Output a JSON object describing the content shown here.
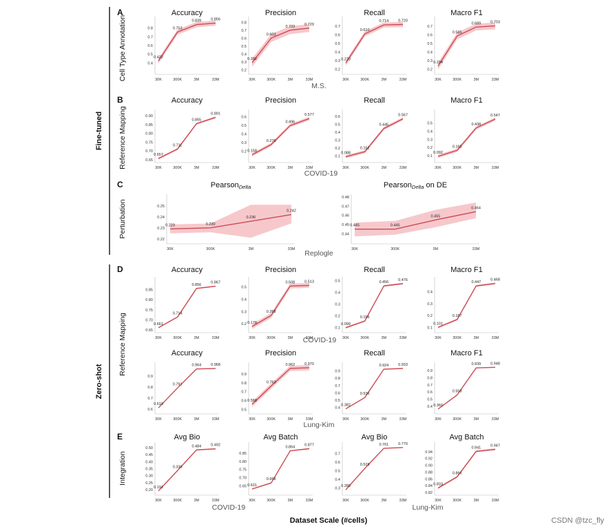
{
  "figure": {
    "x_title": "Dataset Scale (#cells)",
    "watermark": "CSDN @tzc_fly",
    "group_labels": [
      "Fine-tuned",
      "Zero-shot"
    ]
  },
  "colors": {
    "line": "#cc4a52",
    "band": "#ef9aa2",
    "axis": "#bbbbbb"
  },
  "panel_letters": [
    "A",
    "B",
    "C",
    "D",
    "E"
  ],
  "row_labels": [
    "Cell Type Annotation",
    "Reference Mapping",
    "Perturbation",
    "Reference Mapping",
    "Integration"
  ],
  "dataset_labels": [
    "M.S.",
    "COVID-19",
    "Replogle",
    "COVID-19",
    "Lung-Kim",
    "COVID-19",
    "Lung-Kim"
  ],
  "chart_data": [
    {
      "type": "line",
      "title": "Accuracy",
      "categories": [
        "30K",
        "300K",
        "3M",
        "33M"
      ],
      "values": [
        0.422,
        0.753,
        0.839,
        0.856
      ],
      "band": 0.03,
      "ylim": [
        0.3,
        0.9
      ],
      "yticks": [
        "0.4",
        "0.5",
        "0.6",
        "0.7",
        "0.8"
      ],
      "data_labels": [
        "0.422",
        "0.753",
        "0.839",
        "0.856"
      ]
    },
    {
      "type": "line",
      "title": "Precision",
      "categories": [
        "30K",
        "300K",
        "3M",
        "33M"
      ],
      "values": [
        0.292,
        0.603,
        0.703,
        0.729
      ],
      "band": 0.05,
      "ylim": [
        0.18,
        0.84
      ],
      "yticks": [
        "0.2",
        "0.3",
        "0.4",
        "0.5",
        "0.6",
        "0.7",
        "0.8"
      ],
      "data_labels": [
        "0.292",
        "0.603",
        "0.703",
        "0.729"
      ]
    },
    {
      "type": "line",
      "title": "Recall",
      "categories": [
        "30K",
        "300K",
        "3M",
        "33M"
      ],
      "values": [
        0.27,
        0.61,
        0.714,
        0.72
      ],
      "band": 0.03,
      "ylim": [
        0.17,
        0.78
      ],
      "yticks": [
        "0.2",
        "0.3",
        "0.4",
        "0.5",
        "0.6",
        "0.7"
      ],
      "data_labels": [
        "0.270",
        "0.610",
        "0.714",
        "0.720"
      ]
    },
    {
      "type": "line",
      "title": "Macro F1",
      "categories": [
        "30K",
        "300K",
        "3M",
        "33M"
      ],
      "values": [
        0.234,
        0.585,
        0.689,
        0.703
      ],
      "band": 0.04,
      "ylim": [
        0.17,
        0.78
      ],
      "yticks": [
        "0.2",
        "0.3",
        "0.4",
        "0.5",
        "0.6",
        "0.7"
      ],
      "data_labels": [
        "0.234",
        "0.585",
        "0.689",
        "0.703"
      ]
    },
    {
      "type": "line",
      "title": "Accuracy",
      "categories": [
        "30K",
        "300K",
        "3M",
        "33M"
      ],
      "values": [
        0.657,
        0.711,
        0.855,
        0.891
      ],
      "band": 0.006,
      "ylim": [
        0.65,
        0.92
      ],
      "yticks": [
        "0.65",
        "0.70",
        "0.75",
        "0.80",
        "0.85",
        "0.90"
      ],
      "data_labels": [
        "0.657",
        "0.711",
        "0.855",
        "0.891"
      ]
    },
    {
      "type": "line",
      "title": "Precision",
      "categories": [
        "30K",
        "300K",
        "3M",
        "33M"
      ],
      "values": [
        0.158,
        0.276,
        0.496,
        0.577
      ],
      "band": 0.02,
      "ylim": [
        0.1,
        0.65
      ],
      "yticks": [
        "0.2",
        "0.3",
        "0.4",
        "0.5",
        "0.6"
      ],
      "data_labels": [
        "0.158",
        "0.276",
        "0.496",
        "0.577"
      ]
    },
    {
      "type": "line",
      "title": "Recall",
      "categories": [
        "30K",
        "300K",
        "3M",
        "33M"
      ],
      "values": [
        0.088,
        0.152,
        0.445,
        0.567
      ],
      "band": 0.02,
      "ylim": [
        0.05,
        0.65
      ],
      "yticks": [
        "0.1",
        "0.2",
        "0.3",
        "0.4",
        "0.5",
        "0.6"
      ],
      "data_labels": [
        "0.088",
        "0.152",
        "0.445",
        "0.567"
      ]
    },
    {
      "type": "line",
      "title": "Macro F1",
      "categories": [
        "30K",
        "300K",
        "3M",
        "33M"
      ],
      "values": [
        0.092,
        0.165,
        0.438,
        0.547
      ],
      "band": 0.02,
      "ylim": [
        0.05,
        0.63
      ],
      "yticks": [
        "0.1",
        "0.2",
        "0.3",
        "0.4",
        "0.5"
      ],
      "data_labels": [
        "0.092",
        "0.165",
        "0.438",
        "0.547"
      ]
    },
    {
      "type": "line",
      "title": "Pearson",
      "title_sub": "Delta",
      "title_suffix": "",
      "categories": [
        "30K",
        "300K",
        "3M",
        "33M"
      ],
      "values": [
        0.229,
        0.23,
        0.236,
        0.242
      ],
      "band_lo": [
        0.225,
        0.226,
        0.221,
        0.234
      ],
      "band_hi": [
        0.233,
        0.234,
        0.251,
        0.251
      ],
      "ylim": [
        0.218,
        0.258
      ],
      "yticks": [
        "0.22",
        "0.23",
        "0.24",
        "0.25"
      ],
      "data_labels": [
        "0.229",
        "0.230",
        "0.236",
        "0.242"
      ]
    },
    {
      "type": "line",
      "title": "Pearson",
      "title_sub": "Delta",
      "title_suffix": " on DE",
      "categories": [
        "30K",
        "300K",
        "3M",
        "33M"
      ],
      "values": [
        0.445,
        0.445,
        0.455,
        0.464
      ],
      "band_lo": [
        0.437,
        0.439,
        0.447,
        0.457
      ],
      "band_hi": [
        0.452,
        0.454,
        0.466,
        0.474
      ],
      "ylim": [
        0.432,
        0.48
      ],
      "yticks": [
        "0.44",
        "0.45",
        "0.46",
        "0.47",
        "0.48"
      ],
      "data_labels": [
        "0.445",
        "0.445",
        "0.455",
        "0.464"
      ]
    },
    {
      "type": "line",
      "title": "Accuracy",
      "categories": [
        "30K",
        "300K",
        "3M",
        "33M"
      ],
      "values": [
        0.661,
        0.714,
        0.856,
        0.867
      ],
      "band": 0.003,
      "ylim": [
        0.65,
        0.9
      ],
      "yticks": [
        "0.65",
        "0.70",
        "0.75",
        "0.80",
        "0.85"
      ],
      "data_labels": [
        "0.661",
        "0.714",
        "0.856",
        "0.867"
      ]
    },
    {
      "type": "line",
      "title": "Precision",
      "categories": [
        "30K",
        "300K",
        "3M",
        "33M"
      ],
      "values": [
        0.178,
        0.268,
        0.508,
        0.513
      ],
      "band": 0.02,
      "ylim": [
        0.15,
        0.56
      ],
      "yticks": [
        "0.2",
        "0.3",
        "0.4",
        "0.5"
      ],
      "data_labels": [
        "0.178",
        "0.268",
        "0.508",
        "0.513"
      ]
    },
    {
      "type": "line",
      "title": "Recall",
      "categories": [
        "30K",
        "300K",
        "3M",
        "33M"
      ],
      "values": [
        0.099,
        0.156,
        0.456,
        0.476
      ],
      "band": 0.008,
      "ylim": [
        0.08,
        0.51
      ],
      "yticks": [
        "0.1",
        "0.2",
        "0.3",
        "0.4",
        "0.5"
      ],
      "data_labels": [
        "0.099",
        "0.156",
        "0.456",
        "0.476"
      ]
    },
    {
      "type": "line",
      "title": "Macro F1",
      "categories": [
        "30K",
        "300K",
        "3M",
        "33M"
      ],
      "values": [
        0.101,
        0.167,
        0.447,
        0.468
      ],
      "band": 0.008,
      "ylim": [
        0.08,
        0.5
      ],
      "yticks": [
        "0.1",
        "0.2",
        "0.3",
        "0.4"
      ],
      "data_labels": [
        "0.101",
        "0.167",
        "0.447",
        "0.468"
      ]
    },
    {
      "type": "line",
      "title": "Accuracy",
      "categories": [
        "30K",
        "300K",
        "3M",
        "33M"
      ],
      "values": [
        0.61,
        0.791,
        0.964,
        0.968
      ],
      "band": 0.004,
      "ylim": [
        0.58,
        1.0
      ],
      "yticks": [
        "0.6",
        "0.7",
        "0.8",
        "0.9"
      ],
      "data_labels": [
        "0.610",
        "0.791",
        "0.964",
        "0.968"
      ]
    },
    {
      "type": "line",
      "title": "Precision",
      "categories": [
        "30K",
        "300K",
        "3M",
        "33M"
      ],
      "values": [
        0.558,
        0.763,
        0.962,
        0.97
      ],
      "band": 0.03,
      "ylim": [
        0.48,
        1.0
      ],
      "yticks": [
        "0.5",
        "0.6",
        "0.7",
        "0.8",
        "0.9"
      ],
      "data_labels": [
        "0.558",
        "0.763",
        "0.962",
        "0.970"
      ]
    },
    {
      "type": "line",
      "title": "Recall",
      "categories": [
        "30K",
        "300K",
        "3M",
        "33M"
      ],
      "values": [
        0.382,
        0.536,
        0.924,
        0.933
      ],
      "band": 0.006,
      "ylim": [
        0.35,
        0.98
      ],
      "yticks": [
        "0.4",
        "0.5",
        "0.6",
        "0.7",
        "0.8",
        "0.9"
      ],
      "data_labels": [
        "0.382",
        "0.536",
        "0.924",
        "0.933"
      ]
    },
    {
      "type": "line",
      "title": "Macro F1",
      "categories": [
        "30K",
        "300K",
        "3M",
        "33M"
      ],
      "values": [
        0.36,
        0.558,
        0.939,
        0.948
      ],
      "band": 0.006,
      "ylim": [
        0.33,
        0.98
      ],
      "yticks": [
        "0.4",
        "0.5",
        "0.6",
        "0.7",
        "0.8",
        "0.9"
      ],
      "data_labels": [
        "0.360",
        "0.558",
        "0.939",
        "0.948"
      ]
    },
    {
      "type": "line",
      "title": "Avg Bio",
      "categories": [
        "30K",
        "300K",
        "3M",
        "33M"
      ],
      "values": [
        0.191,
        0.336,
        0.484,
        0.492
      ],
      "band": 0.005,
      "ylim": [
        0.18,
        0.52
      ],
      "yticks": [
        "0.20",
        "0.25",
        "0.30",
        "0.35",
        "0.40",
        "0.45",
        "0.50"
      ],
      "data_labels": [
        "0.191",
        "0.336",
        "0.484",
        "0.492"
      ]
    },
    {
      "type": "line",
      "title": "Avg Batch",
      "categories": [
        "30K",
        "300K",
        "3M",
        "33M"
      ],
      "values": [
        0.631,
        0.668,
        0.864,
        0.877
      ],
      "band": 0.004,
      "ylim": [
        0.61,
        0.9
      ],
      "yticks": [
        "0.65",
        "0.70",
        "0.75",
        "0.80",
        "0.85"
      ],
      "data_labels": [
        "0.631",
        "0.668",
        "0.864",
        "0.877"
      ]
    },
    {
      "type": "line",
      "title": "Avg Bio",
      "categories": [
        "30K",
        "300K",
        "3M",
        "33M"
      ],
      "values": [
        0.28,
        0.528,
        0.761,
        0.77
      ],
      "band": 0.005,
      "ylim": [
        0.25,
        0.8
      ],
      "yticks": [
        "0.3",
        "0.4",
        "0.5",
        "0.6",
        "0.7"
      ],
      "data_labels": [
        "0.280",
        "0.528",
        "0.761",
        "0.770"
      ]
    },
    {
      "type": "line",
      "title": "Avg Batch",
      "categories": [
        "30K",
        "300K",
        "3M",
        "33M"
      ],
      "values": [
        0.833,
        0.866,
        0.941,
        0.947
      ],
      "band": 0.003,
      "ylim": [
        0.82,
        0.96
      ],
      "yticks": [
        "0.82",
        "0.84",
        "0.86",
        "0.88",
        "0.90",
        "0.92",
        "0.94"
      ],
      "data_labels": [
        "0.833",
        "0.866",
        "0.941",
        "0.947"
      ]
    }
  ]
}
